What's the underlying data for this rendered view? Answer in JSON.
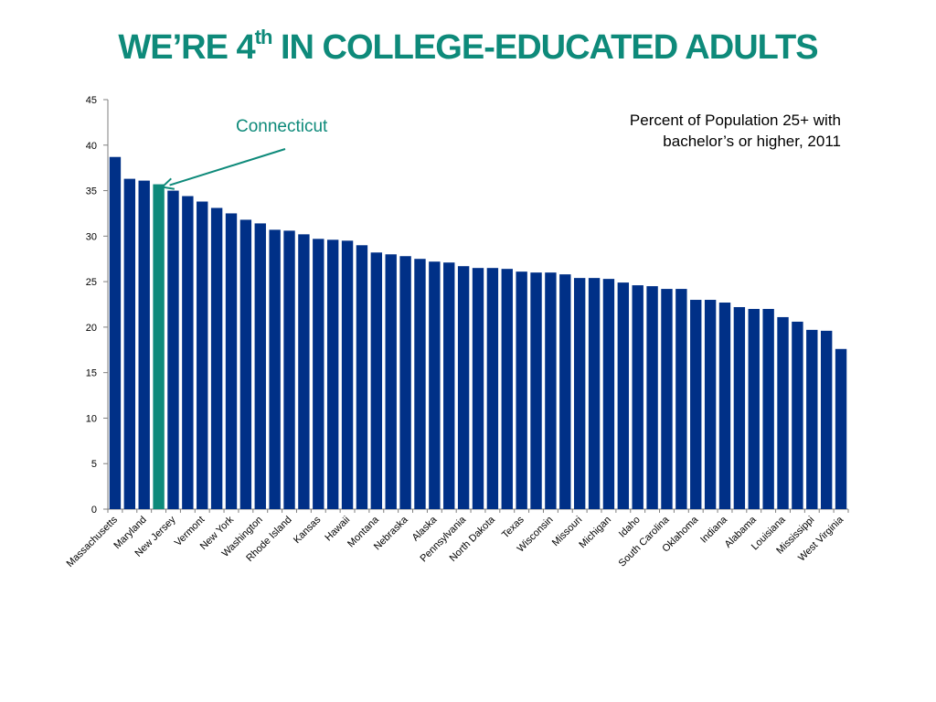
{
  "title": {
    "main_before": "WE’RE 4",
    "main_sup": "th",
    "main_after": " IN COLLEGE-EDUCATED ADULTS"
  },
  "callout_label": "Connecticut",
  "colors": {
    "title": "#0e8a7a",
    "bar": "#003087",
    "highlight": "#0e8a7a",
    "axis": "#7f7f7f",
    "arrow": "#0e8a7a"
  },
  "chart_data": {
    "type": "bar",
    "subtitle": "Percent of Population 25+ with bachelor’s or higher, 2011",
    "subtitle_lines": [
      "Percent of Population 25+ with",
      "bachelor’s or higher, 2011"
    ],
    "ylim": [
      0,
      45
    ],
    "yticks": [
      0,
      5,
      10,
      15,
      20,
      25,
      30,
      35,
      40,
      45
    ],
    "grid": false,
    "highlight_index": 3,
    "tick_labels_shown": [
      "Massachusetts",
      "Maryland",
      "New Jersey",
      "Vermont",
      "New York",
      "Washington",
      "Rhode Island",
      "Kansas",
      "Hawaii",
      "Montana",
      "Nebraska",
      "Alaska",
      "Pennsylvania",
      "North Dakota",
      "Texas",
      "Wisconsin",
      "Missouri",
      "Michigan",
      "Idaho",
      "South Carolina",
      "Oklahoma",
      "Indiana",
      "Alabama",
      "Louisiana",
      "Mississippi",
      "West Virginia"
    ],
    "tick_label_every": 2,
    "values": [
      38.7,
      36.3,
      36.1,
      35.7,
      35.0,
      34.4,
      33.8,
      33.1,
      32.5,
      31.8,
      31.4,
      30.7,
      30.6,
      30.2,
      29.7,
      29.6,
      29.5,
      29.0,
      28.2,
      28.0,
      27.8,
      27.5,
      27.2,
      27.1,
      26.7,
      26.5,
      26.5,
      26.4,
      26.1,
      26.0,
      26.0,
      25.8,
      25.4,
      25.4,
      25.3,
      24.9,
      24.6,
      24.5,
      24.2,
      24.2,
      23.0,
      23.0,
      22.7,
      22.2,
      22.0,
      22.0,
      21.1,
      20.6,
      19.7,
      19.6,
      17.6
    ]
  }
}
